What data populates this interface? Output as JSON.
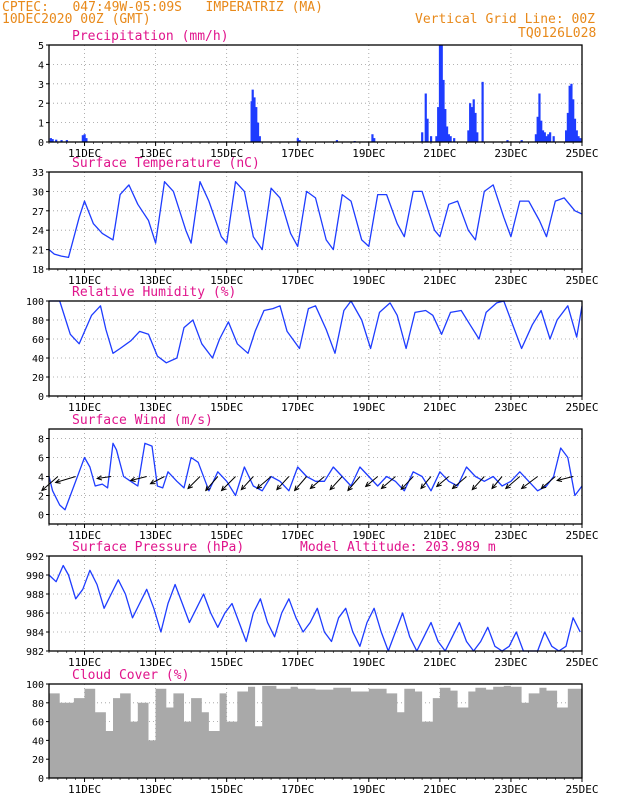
{
  "header": {
    "line1": "CPTEC:   047:49W-05:09S   IMPERATRIZ (MA)",
    "line2": "10DEC2020 00Z (GMT)",
    "grid_note": "Vertical Grid Line: 00Z",
    "code": "TQ0126L028"
  },
  "colors": {
    "header": "#e8891a",
    "panel_title": "#e0148c",
    "series": "#1e3cff",
    "cloud": "#a9a9a9",
    "wind_vectors": "#000000"
  },
  "chart_data": [
    {
      "id": "precipitation",
      "type": "bar",
      "title": "Precipitation (mm/h)",
      "ylim": [
        0,
        5
      ],
      "yticks": [
        0,
        1,
        2,
        3,
        4,
        5
      ],
      "x_unit": "days since 10DEC2020 00Z",
      "xlim": [
        0,
        15
      ],
      "grid": true,
      "bars": [
        [
          0.05,
          0.2
        ],
        [
          0.1,
          0.15
        ],
        [
          0.2,
          0.12
        ],
        [
          0.35,
          0.1
        ],
        [
          0.5,
          0.1
        ],
        [
          0.95,
          0.35
        ],
        [
          1.0,
          0.4
        ],
        [
          1.05,
          0.2
        ],
        [
          5.7,
          2.1
        ],
        [
          5.73,
          2.7
        ],
        [
          5.78,
          2.3
        ],
        [
          5.83,
          1.8
        ],
        [
          5.88,
          1.0
        ],
        [
          5.93,
          0.3
        ],
        [
          7.0,
          0.2
        ],
        [
          7.05,
          0.1
        ],
        [
          8.1,
          0.1
        ],
        [
          8.6,
          0.05
        ],
        [
          9.1,
          0.4
        ],
        [
          9.15,
          0.2
        ],
        [
          10.5,
          0.5
        ],
        [
          10.6,
          2.5
        ],
        [
          10.65,
          1.2
        ],
        [
          10.75,
          0.3
        ],
        [
          10.9,
          0.3
        ],
        [
          10.95,
          1.8
        ],
        [
          11.0,
          5.0
        ],
        [
          11.05,
          5.0
        ],
        [
          11.1,
          3.2
        ],
        [
          11.15,
          1.7
        ],
        [
          11.2,
          0.8
        ],
        [
          11.25,
          0.4
        ],
        [
          11.3,
          0.3
        ],
        [
          11.4,
          0.2
        ],
        [
          11.8,
          0.6
        ],
        [
          11.85,
          2.0
        ],
        [
          11.9,
          1.8
        ],
        [
          11.95,
          2.2
        ],
        [
          12.0,
          1.5
        ],
        [
          12.05,
          0.5
        ],
        [
          12.2,
          3.1
        ],
        [
          12.9,
          0.1
        ],
        [
          13.3,
          0.1
        ],
        [
          13.7,
          0.4
        ],
        [
          13.75,
          1.3
        ],
        [
          13.8,
          2.5
        ],
        [
          13.85,
          1.1
        ],
        [
          13.9,
          0.6
        ],
        [
          13.95,
          0.5
        ],
        [
          14.0,
          0.3
        ],
        [
          14.05,
          0.4
        ],
        [
          14.1,
          0.5
        ],
        [
          14.2,
          0.3
        ],
        [
          14.55,
          0.6
        ],
        [
          14.6,
          1.5
        ],
        [
          14.65,
          2.9
        ],
        [
          14.7,
          3.0
        ],
        [
          14.75,
          2.2
        ],
        [
          14.8,
          1.2
        ],
        [
          14.85,
          0.6
        ],
        [
          14.9,
          0.3
        ],
        [
          14.95,
          0.2
        ]
      ]
    },
    {
      "id": "temperature",
      "type": "line",
      "title": "Surface Temperature (nC)",
      "ylim": [
        18,
        33
      ],
      "yticks": [
        18,
        21,
        24,
        27,
        30,
        33
      ],
      "x_unit": "days since 10DEC2020 00Z",
      "xlim": [
        0,
        15
      ],
      "grid": true,
      "x": [
        0,
        0.15,
        0.35,
        0.55,
        0.85,
        1.0,
        1.25,
        1.5,
        1.8,
        2.0,
        2.25,
        2.5,
        2.8,
        3.0,
        3.25,
        3.5,
        3.85,
        4.0,
        4.25,
        4.5,
        4.85,
        5.0,
        5.25,
        5.5,
        5.75,
        6.0,
        6.25,
        6.5,
        6.8,
        7.0,
        7.25,
        7.5,
        7.8,
        8.0,
        8.25,
        8.5,
        8.8,
        9.0,
        9.25,
        9.5,
        9.8,
        10.0,
        10.25,
        10.5,
        10.85,
        11.0,
        11.25,
        11.5,
        11.8,
        12.0,
        12.25,
        12.5,
        12.8,
        13.0,
        13.25,
        13.5,
        13.8,
        14.0,
        14.25,
        14.5,
        14.8,
        15.0
      ],
      "values": [
        21,
        20.3,
        20,
        19.8,
        26,
        28.5,
        25,
        23.5,
        22.5,
        29.5,
        31,
        28,
        25.5,
        22,
        31.5,
        30,
        24,
        22,
        31.5,
        28.5,
        23,
        22,
        31.5,
        30,
        23,
        21,
        30.5,
        29,
        23.5,
        21.5,
        30,
        29,
        22.5,
        21,
        29.5,
        28.5,
        22.5,
        21.5,
        29.5,
        29.5,
        25,
        23,
        30,
        30,
        24,
        23,
        28,
        28.5,
        24,
        22.5,
        30,
        31,
        26,
        23,
        28.5,
        28.5,
        25.5,
        23,
        28.5,
        29,
        27,
        26.5
      ]
    },
    {
      "id": "humidity",
      "type": "line",
      "title": "Relative Humidity (%)",
      "ylim": [
        0,
        100
      ],
      "yticks": [
        0,
        20,
        40,
        60,
        80,
        100
      ],
      "x_unit": "days since 10DEC2020 00Z",
      "xlim": [
        0,
        15
      ],
      "grid": true,
      "x": [
        0,
        0.3,
        0.6,
        0.85,
        1.2,
        1.45,
        1.6,
        1.8,
        2.0,
        2.3,
        2.55,
        2.8,
        3.05,
        3.3,
        3.6,
        3.8,
        4.05,
        4.3,
        4.6,
        4.8,
        5.05,
        5.3,
        5.6,
        5.8,
        6.05,
        6.3,
        6.5,
        6.7,
        7.05,
        7.3,
        7.5,
        7.8,
        8.05,
        8.3,
        8.5,
        8.8,
        9.05,
        9.3,
        9.6,
        9.8,
        10.05,
        10.3,
        10.6,
        10.8,
        11.05,
        11.3,
        11.6,
        11.85,
        12.1,
        12.3,
        12.6,
        12.8,
        13.0,
        13.3,
        13.6,
        13.85,
        14.1,
        14.3,
        14.6,
        14.85,
        15.0
      ],
      "values": [
        100,
        100,
        65,
        55,
        85,
        95,
        70,
        45,
        50,
        58,
        68,
        65,
        42,
        35,
        40,
        72,
        80,
        55,
        40,
        60,
        78,
        55,
        45,
        68,
        90,
        92,
        95,
        68,
        50,
        92,
        95,
        70,
        45,
        90,
        100,
        80,
        50,
        88,
        98,
        85,
        50,
        88,
        90,
        85,
        65,
        88,
        90,
        75,
        60,
        88,
        98,
        100,
        80,
        50,
        75,
        90,
        60,
        80,
        95,
        62,
        95
      ]
    },
    {
      "id": "wind",
      "type": "line",
      "title": "Surface Wind (m/s)",
      "ylim": [
        -1,
        9
      ],
      "yticks": [
        0,
        2,
        4,
        6,
        8
      ],
      "x_unit": "days since 10DEC2020 00Z",
      "xlim": [
        0,
        15
      ],
      "grid": true,
      "x": [
        0,
        0.1,
        0.3,
        0.45,
        0.7,
        0.85,
        1.0,
        1.15,
        1.3,
        1.5,
        1.65,
        1.8,
        1.9,
        2.1,
        2.3,
        2.5,
        2.7,
        2.9,
        3.05,
        3.2,
        3.35,
        3.6,
        3.8,
        4.0,
        4.2,
        4.5,
        4.75,
        5.0,
        5.25,
        5.5,
        5.75,
        6.0,
        6.25,
        6.5,
        6.75,
        7.0,
        7.25,
        7.5,
        7.75,
        8.0,
        8.25,
        8.5,
        8.75,
        9.0,
        9.25,
        9.5,
        9.75,
        10.0,
        10.25,
        10.5,
        10.75,
        11.0,
        11.25,
        11.5,
        11.75,
        12.0,
        12.25,
        12.5,
        12.75,
        13.0,
        13.25,
        13.5,
        13.75,
        14.0,
        14.2,
        14.4,
        14.6,
        14.8,
        15.0
      ],
      "values": [
        4,
        2.5,
        1,
        0.5,
        3,
        4.5,
        6,
        5,
        3,
        3.2,
        2.8,
        7.5,
        6.8,
        4,
        3.5,
        3,
        7.5,
        7.2,
        3,
        2.8,
        4.5,
        3.5,
        2.8,
        6,
        5.5,
        2.5,
        4.5,
        3.5,
        2,
        5,
        3,
        2.5,
        4,
        3.5,
        2.5,
        5,
        4,
        3.5,
        3.5,
        5,
        4,
        3,
        5,
        4,
        3,
        4,
        3.5,
        2.5,
        4.5,
        4,
        2.5,
        4.5,
        3.5,
        3,
        5,
        4,
        3.5,
        4,
        3,
        3.5,
        4.5,
        3.5,
        2.5,
        3,
        4,
        7,
        6,
        2,
        3
      ]
    },
    {
      "id": "wind_vectors",
      "type": "vector",
      "x_unit": "days since 10DEC2020 00Z",
      "vectors": [
        [
          0.25,
          -0.4,
          -0.35
        ],
        [
          0.75,
          -0.5,
          -0.15
        ],
        [
          1.75,
          -0.35,
          -0.05
        ],
        [
          2.75,
          -0.4,
          -0.1
        ],
        [
          3.25,
          -0.35,
          -0.18
        ],
        [
          4.25,
          -0.3,
          -0.3
        ],
        [
          4.75,
          -0.3,
          -0.35
        ],
        [
          5.25,
          -0.35,
          -0.35
        ],
        [
          5.75,
          -0.3,
          -0.33
        ],
        [
          6.25,
          -0.35,
          -0.3
        ],
        [
          6.75,
          -0.3,
          -0.33
        ],
        [
          7.25,
          -0.3,
          -0.35
        ],
        [
          7.75,
          -0.35,
          -0.3
        ],
        [
          8.25,
          -0.3,
          -0.33
        ],
        [
          8.75,
          -0.3,
          -0.35
        ],
        [
          9.25,
          -0.3,
          -0.25
        ],
        [
          9.75,
          -0.35,
          -0.3
        ],
        [
          10.25,
          -0.3,
          -0.32
        ],
        [
          10.75,
          -0.25,
          -0.3
        ],
        [
          11.25,
          -0.3,
          -0.25
        ],
        [
          11.75,
          -0.35,
          -0.3
        ],
        [
          12.25,
          -0.3,
          -0.33
        ],
        [
          12.75,
          -0.25,
          -0.3
        ],
        [
          13.25,
          -0.35,
          -0.3
        ],
        [
          13.75,
          -0.4,
          -0.3
        ],
        [
          14.25,
          -0.35,
          -0.3
        ],
        [
          14.75,
          -0.4,
          -0.1
        ]
      ]
    },
    {
      "id": "pressure",
      "type": "line",
      "title": "Surface Pressure (hPa)",
      "annotation": "Model Altitude: 203.989 m",
      "ylim": [
        982,
        992
      ],
      "yticks": [
        982,
        984,
        986,
        988,
        990,
        992
      ],
      "x_unit": "days since 10DEC2020 00Z",
      "xlim": [
        0,
        15
      ],
      "grid": true,
      "x": [
        0,
        0.2,
        0.4,
        0.55,
        0.75,
        0.95,
        1.15,
        1.35,
        1.55,
        1.75,
        1.95,
        2.15,
        2.35,
        2.55,
        2.75,
        2.95,
        3.15,
        3.35,
        3.55,
        3.75,
        3.95,
        4.15,
        4.35,
        4.55,
        4.75,
        4.95,
        5.15,
        5.35,
        5.55,
        5.75,
        5.95,
        6.15,
        6.35,
        6.55,
        6.75,
        6.95,
        7.15,
        7.35,
        7.55,
        7.75,
        7.95,
        8.15,
        8.35,
        8.55,
        8.75,
        8.95,
        9.15,
        9.35,
        9.55,
        9.75,
        9.95,
        10.15,
        10.35,
        10.55,
        10.75,
        10.95,
        11.15,
        11.35,
        11.55,
        11.75,
        11.95,
        12.15,
        12.35,
        12.55,
        12.75,
        12.95,
        13.15,
        13.35,
        13.55,
        13.75,
        13.95,
        14.15,
        14.35,
        14.55,
        14.75,
        14.95
      ],
      "values": [
        990,
        989.3,
        991,
        990,
        987.5,
        988.5,
        990.5,
        989,
        986.5,
        988,
        989.5,
        988,
        985.5,
        987,
        988.5,
        986.5,
        984,
        987,
        989,
        987,
        985,
        986.5,
        988,
        986,
        984.5,
        986,
        987,
        985,
        983,
        986,
        987.5,
        985,
        983.5,
        986,
        987.5,
        985.5,
        984,
        985,
        986.5,
        984,
        983,
        985.5,
        986.5,
        984,
        982.5,
        985,
        986.5,
        984,
        982,
        984,
        986,
        983.5,
        982,
        983.5,
        985,
        983,
        981.5,
        983.5,
        985,
        983,
        981,
        983,
        984.5,
        982.5,
        981,
        982.5,
        984,
        982,
        980.5,
        982,
        984,
        982.5,
        981,
        982.5,
        985.5,
        984
      ]
    },
    {
      "id": "cloud_cover",
      "type": "area",
      "title": "Cloud Cover (%)",
      "ylim": [
        0,
        100
      ],
      "yticks": [
        0,
        20,
        40,
        60,
        80,
        100
      ],
      "x_unit": "days since 10DEC2020 00Z",
      "xlim": [
        0,
        15
      ],
      "grid": true,
      "x": [
        0,
        0.3,
        0.7,
        1.0,
        1.3,
        1.6,
        1.8,
        2.0,
        2.3,
        2.5,
        2.8,
        3.0,
        3.3,
        3.5,
        3.8,
        4.0,
        4.3,
        4.5,
        4.8,
        5.0,
        5.3,
        5.6,
        5.8,
        6.0,
        6.4,
        6.8,
        7.0,
        7.5,
        8.0,
        8.5,
        9.0,
        9.5,
        9.8,
        10.0,
        10.3,
        10.5,
        10.8,
        11.0,
        11.3,
        11.5,
        11.8,
        12.0,
        12.3,
        12.5,
        12.8,
        13.0,
        13.3,
        13.5,
        13.8,
        14.0,
        14.3,
        14.6,
        15.0
      ],
      "values": [
        90,
        80,
        85,
        95,
        70,
        50,
        85,
        90,
        60,
        80,
        40,
        95,
        75,
        90,
        60,
        85,
        70,
        50,
        90,
        60,
        92,
        97,
        55,
        98,
        95,
        97,
        95,
        94,
        96,
        92,
        95,
        90,
        70,
        95,
        92,
        60,
        85,
        96,
        93,
        75,
        92,
        96,
        94,
        97,
        98,
        97,
        80,
        90,
        96,
        93,
        75,
        95,
        97
      ]
    }
  ],
  "panels": [
    {
      "title": "Precipitation (mm/h)"
    },
    {
      "title": "Surface Temperature (nC)"
    },
    {
      "title": "Relative Humidity (%)"
    },
    {
      "title": "Surface Wind (m/s)"
    },
    {
      "title": "Surface Pressure (hPa)",
      "annotation": "Model Altitude: 203.989 m"
    },
    {
      "title": "Cloud Cover (%)"
    }
  ],
  "xaxis": {
    "tick_days": [
      1,
      3,
      5,
      7,
      9,
      11,
      13,
      15
    ],
    "tick_labels": [
      "11DEC",
      "13DEC",
      "15DEC",
      "17DEC",
      "19DEC",
      "21DEC",
      "23DEC",
      "25DEC"
    ],
    "xlim": [
      0,
      15
    ]
  }
}
